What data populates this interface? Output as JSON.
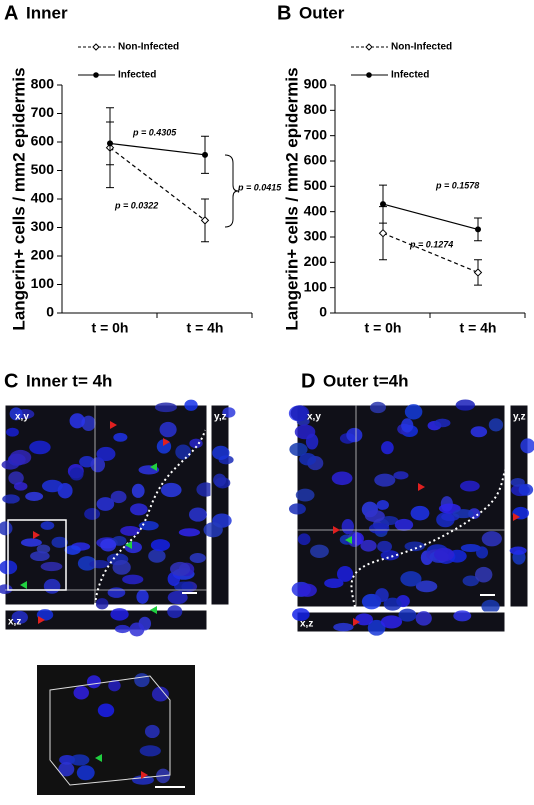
{
  "chart_data": [
    {
      "type": "line",
      "label": "A",
      "title": "Inner",
      "ylabel": "Langerin+ cells / mm2 epidermis",
      "categories": [
        "t = 0h",
        "t = 4h"
      ],
      "ylim": [
        0,
        800
      ],
      "yticks": [
        0,
        100,
        200,
        300,
        400,
        500,
        600,
        700,
        800
      ],
      "series": [
        {
          "name": "Non-Infected",
          "color": "#000000",
          "dashed": true,
          "values": [
            580,
            325
          ],
          "errors": [
            140,
            75
          ]
        },
        {
          "name": "Infected",
          "color": "#000000",
          "dashed": false,
          "values": [
            595,
            555
          ],
          "errors": [
            75,
            65
          ]
        }
      ],
      "annotations": [
        "p = 0.4305",
        "p = 0.0322",
        "p = 0.0415"
      ]
    },
    {
      "type": "line",
      "label": "B",
      "title": "Outer",
      "ylabel": "Langerin+ cells / mm2 epidermis",
      "categories": [
        "t = 0h",
        "t = 4h"
      ],
      "ylim": [
        0,
        900
      ],
      "yticks": [
        0,
        100,
        200,
        300,
        400,
        500,
        600,
        700,
        800,
        900
      ],
      "series": [
        {
          "name": "Non-Infected",
          "color": "#000000",
          "dashed": true,
          "values": [
            315,
            160
          ],
          "errors": [
            105,
            50
          ]
        },
        {
          "name": "Infected",
          "color": "#000000",
          "dashed": false,
          "values": [
            430,
            330
          ],
          "errors": [
            75,
            45
          ]
        }
      ],
      "annotations": [
        "p = 0.1578",
        "p = 0.1274"
      ]
    }
  ],
  "images": [
    {
      "label": "C",
      "title": "Inner t= 4h",
      "views": [
        "x,y",
        "y,z",
        "x,z"
      ]
    },
    {
      "label": "D",
      "title": "Outer t=4h",
      "views": [
        "x,y",
        "y,z",
        "x,z"
      ]
    }
  ]
}
